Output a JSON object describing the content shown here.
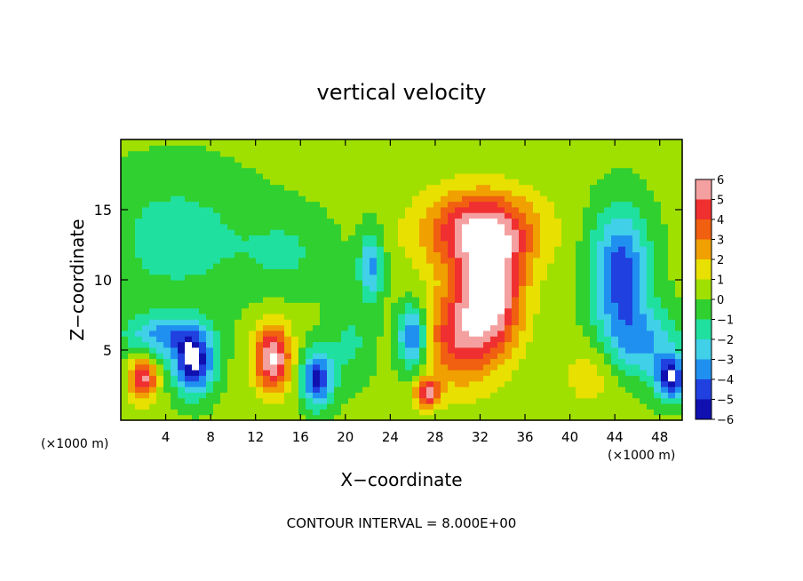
{
  "chart_data": {
    "type": "heatmap",
    "title": "vertical velocity",
    "xlabel": "X−coordinate",
    "ylabel": "Z−coordinate",
    "x_unit_label": "(×1000 m)",
    "y_unit_label": "(×1000 m)",
    "footer": "CONTOUR INTERVAL = 8.000E+00",
    "xlim": [
      0,
      50
    ],
    "ylim": [
      0,
      20
    ],
    "x_ticks": [
      4,
      8,
      12,
      16,
      20,
      24,
      28,
      32,
      36,
      40,
      44,
      48
    ],
    "x_tick_labels": [
      "4",
      "8",
      "12",
      "16",
      "20",
      "24",
      "28",
      "32",
      "36",
      "40",
      "44",
      "48"
    ],
    "y_ticks": [
      5,
      10,
      15
    ],
    "y_tick_labels": [
      "5",
      "10",
      "15"
    ],
    "colorbar": {
      "levels": [
        6,
        5,
        4,
        3,
        2,
        1,
        0,
        -1,
        -2,
        -3,
        -4,
        -5,
        -6
      ],
      "labels": [
        "6",
        "5",
        "4",
        "3",
        "2",
        "1",
        "0",
        "−1",
        "−2",
        "−3",
        "−4",
        "−5",
        "−6"
      ],
      "colors": [
        "#f5a0a0",
        "#f03030",
        "#f06010",
        "#f0a000",
        "#e8e000",
        "#a0e000",
        "#30d030",
        "#20e0a0",
        "#40d0e8",
        "#2090f0",
        "#2040e0",
        "#1010b0",
        "#8000c0"
      ]
    },
    "background_value": 0.3,
    "features": [
      {
        "x": 32,
        "z": 13.5,
        "value": 5.5,
        "sx": 5.0,
        "sz": 2.8
      },
      {
        "x": 33,
        "z": 9.0,
        "value": 6.0,
        "sx": 2.8,
        "sz": 4.0
      },
      {
        "x": 30,
        "z": 6.0,
        "value": 4.0,
        "sx": 3.2,
        "sz": 3.5
      },
      {
        "x": 13.5,
        "z": 4.5,
        "value": 6.0,
        "sx": 1.6,
        "sz": 2.3
      },
      {
        "x": 2.0,
        "z": 3.0,
        "value": 5.0,
        "sx": 1.2,
        "sz": 1.5
      },
      {
        "x": 27.3,
        "z": 2.0,
        "value": 5.0,
        "sx": 1.1,
        "sz": 1.0
      },
      {
        "x": 42,
        "z": 3.5,
        "value": 1.5,
        "sx": 2.5,
        "sz": 2.5
      },
      {
        "x": 6.5,
        "z": 4.0,
        "value": -6.0,
        "sx": 1.8,
        "sz": 2.2
      },
      {
        "x": 17.5,
        "z": 3.0,
        "value": -5.5,
        "sx": 1.4,
        "sz": 2.0
      },
      {
        "x": 26.0,
        "z": 6.0,
        "value": -5.0,
        "sx": 1.3,
        "sz": 2.3
      },
      {
        "x": 44.5,
        "z": 10.5,
        "value": -5.0,
        "sx": 2.6,
        "sz": 4.5
      },
      {
        "x": 49.0,
        "z": 3.0,
        "value": -5.5,
        "sx": 1.4,
        "sz": 1.6
      },
      {
        "x": 22.3,
        "z": 11.0,
        "value": -3.5,
        "sx": 1.1,
        "sz": 2.5
      },
      {
        "x": 5.0,
        "z": 13.0,
        "value": -1.8,
        "sx": 7.0,
        "sz": 5.0
      },
      {
        "x": 4.0,
        "z": 6.0,
        "value": -3.5,
        "sx": 3.5,
        "sz": 1.5
      },
      {
        "x": 46.5,
        "z": 5.5,
        "value": -3.0,
        "sx": 3.5,
        "sz": 2.5
      },
      {
        "x": 15.0,
        "z": 12.0,
        "value": -1.3,
        "sx": 4.0,
        "sz": 3.0
      },
      {
        "x": 20.5,
        "z": 5.5,
        "value": -1.5,
        "sx": 2.0,
        "sz": 3.0
      }
    ]
  }
}
